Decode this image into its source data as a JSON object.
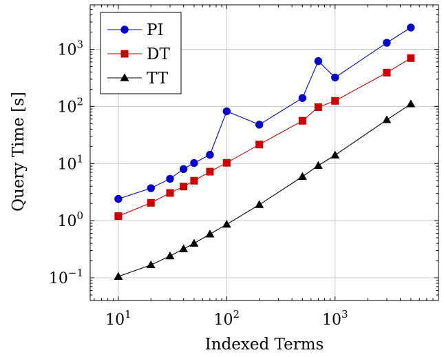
{
  "chart_data": {
    "type": "line",
    "xscale": "log",
    "yscale": "log",
    "xlabel": "Indexed Terms",
    "ylabel": "Query Time [s]",
    "xlim": [
      5.5,
      9000
    ],
    "ylim": [
      0.04,
      6000
    ],
    "xticks": [
      {
        "value": 10,
        "base": "10",
        "exp": "1"
      },
      {
        "value": 100,
        "base": "10",
        "exp": "2"
      },
      {
        "value": 1000,
        "base": "10",
        "exp": "3"
      }
    ],
    "yticks": [
      {
        "value": 0.1,
        "base": "10",
        "exp": "−1"
      },
      {
        "value": 1,
        "base": "10",
        "exp": "0"
      },
      {
        "value": 10,
        "base": "10",
        "exp": "1"
      },
      {
        "value": 100,
        "base": "10",
        "exp": "2"
      },
      {
        "value": 1000,
        "base": "10",
        "exp": "3"
      }
    ],
    "grid": true,
    "legend_position": "top-left",
    "x": [
      10,
      20,
      30,
      40,
      50,
      70,
      100,
      200,
      500,
      700,
      1000,
      3000,
      5000
    ],
    "series": [
      {
        "name": "PI",
        "color": "#0000cc",
        "marker": "circle",
        "values": [
          2.4,
          3.7,
          5.4,
          8.0,
          10.2,
          14.2,
          82,
          48,
          140,
          620,
          320,
          1300,
          2400
        ]
      },
      {
        "name": "DT",
        "color": "#cc0000",
        "marker": "square",
        "values": [
          1.2,
          2.05,
          3.05,
          3.95,
          5.0,
          7.2,
          10.3,
          21.5,
          56,
          97,
          125,
          390,
          700
        ]
      },
      {
        "name": "TT",
        "color": "#000000",
        "marker": "triangle",
        "values": [
          0.105,
          0.168,
          0.24,
          0.32,
          0.4,
          0.58,
          0.86,
          1.9,
          5.9,
          9.2,
          14,
          58,
          110
        ]
      }
    ]
  }
}
